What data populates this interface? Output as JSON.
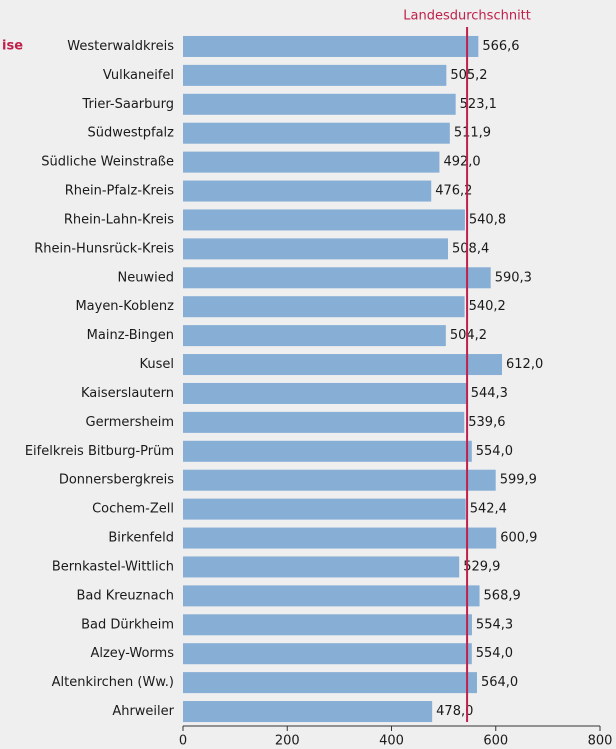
{
  "chart_data": {
    "type": "bar",
    "orientation": "horizontal",
    "annotation": "ise",
    "reference_line": {
      "label": "Landesdurchschnitt",
      "value": 545,
      "color": "#c0204a"
    },
    "categories": [
      "Westerwaldkreis",
      "Vulkaneifel",
      "Trier-Saarburg",
      "Südwestpfalz",
      "Südliche Weinstraße",
      "Rhein-Pfalz-Kreis",
      "Rhein-Lahn-Kreis",
      "Rhein-Hunsrück-Kreis",
      "Neuwied",
      "Mayen-Koblenz",
      "Mainz-Bingen",
      "Kusel",
      "Kaiserslautern",
      "Germersheim",
      "Eifelkreis Bitburg-Prüm",
      "Donnersbergkreis",
      "Cochem-Zell",
      "Birkenfeld",
      "Bernkastel-Wittlich",
      "Bad Kreuznach",
      "Bad Dürkheim",
      "Alzey-Worms",
      "Altenkirchen (Ww.)",
      "Ahrweiler"
    ],
    "values": [
      566.6,
      505.2,
      523.1,
      511.9,
      492.0,
      476.2,
      540.8,
      508.4,
      590.3,
      540.2,
      504.2,
      612.0,
      544.3,
      539.6,
      554.0,
      599.9,
      542.4,
      600.9,
      529.9,
      568.9,
      554.3,
      554.0,
      564.0,
      478.0
    ],
    "value_labels": [
      "566,6",
      "505,2",
      "523,1",
      "511,9",
      "492,0",
      "476,2",
      "540,8",
      "508,4",
      "590,3",
      "540,2",
      "504,2",
      "612,0",
      "544,3",
      "539,6",
      "554,0",
      "599,9",
      "542,4",
      "600,9",
      "529,9",
      "568,9",
      "554,3",
      "554,0",
      "564,0",
      "478,0"
    ],
    "color": "#87aed4",
    "xlim": [
      0,
      800
    ],
    "xticks": [
      0,
      200,
      400,
      600,
      800
    ]
  }
}
